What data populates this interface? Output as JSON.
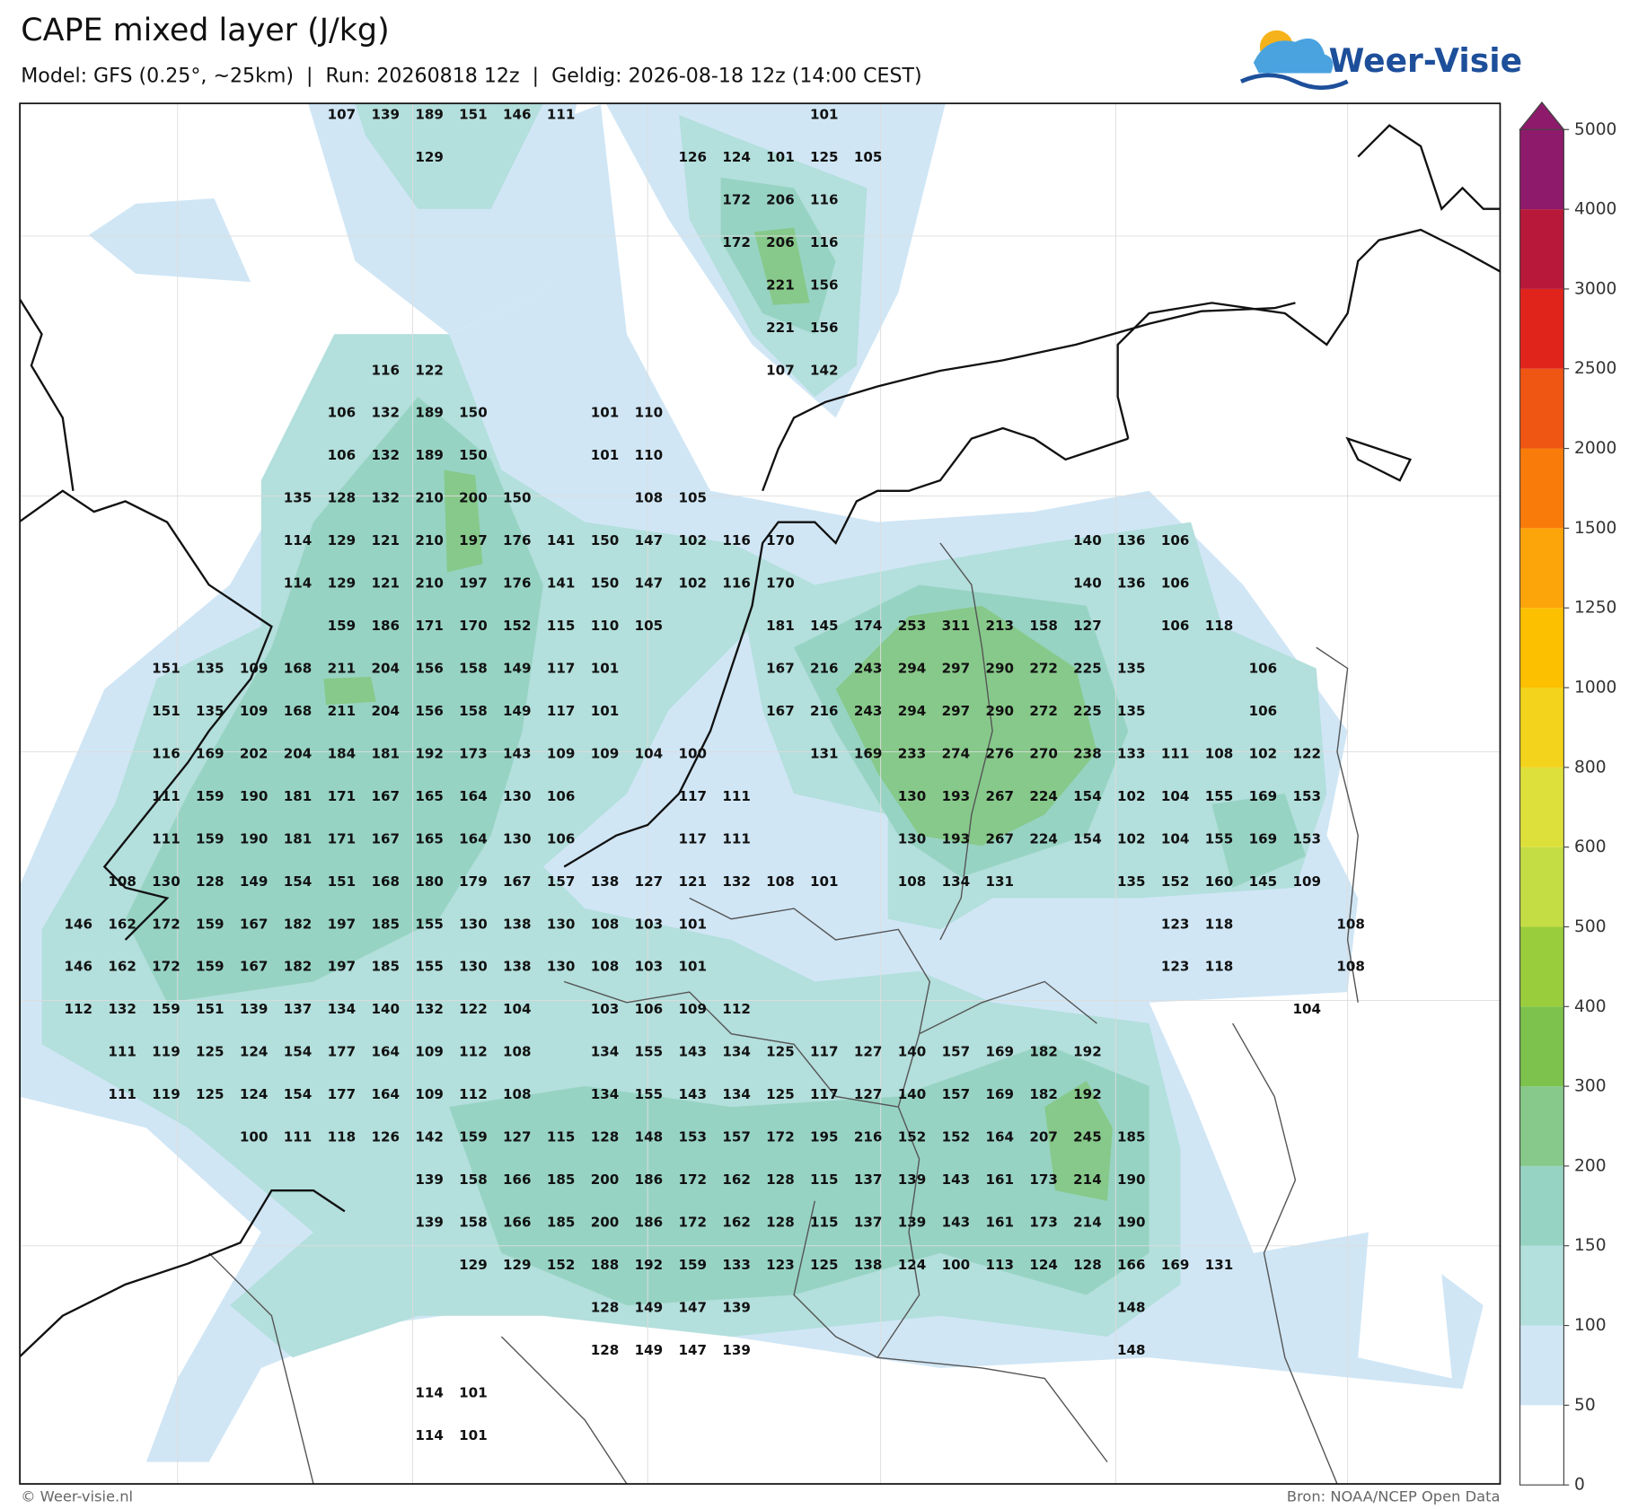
{
  "header": {
    "title": "CAPE mixed layer (J/kg)",
    "subtitle": "Model: GFS (0.25°, ~25km)  |  Run: 20260818 12z  |  Geldig: 2026-08-18 12z (14:00 CEST)",
    "logo": "Weer-Visie"
  },
  "footer": {
    "left": "© Weer-visie.nl",
    "right": "Bron: NOAA/NCEP Open Data"
  },
  "map": {
    "colorbar": {
      "levels": [
        0,
        50,
        100,
        150,
        200,
        300,
        400,
        500,
        600,
        800,
        1000,
        1250,
        1500,
        2000,
        2500,
        3000,
        4000,
        5000
      ],
      "colors": [
        "#ffffff",
        "#d0e6f5",
        "#b3dfdc",
        "#97d3c3",
        "#87c98a",
        "#7cc24c",
        "#9acd3c",
        "#c5dd45",
        "#dde03a",
        "#f3d31c",
        "#fcc000",
        "#fca50a",
        "#f97c0a",
        "#ef5513",
        "#e0241c",
        "#b8193a",
        "#8e1a6b"
      ]
    },
    "labels": [
      [
        null,
        null,
        null,
        null,
        null,
        null,
        107,
        139,
        189,
        151,
        146,
        111,
        null,
        null,
        null,
        null,
        null,
        101,
        null,
        null,
        null,
        null,
        null,
        null,
        null,
        null,
        null,
        null,
        null,
        null
      ],
      [
        null,
        null,
        null,
        null,
        null,
        null,
        null,
        null,
        129,
        null,
        null,
        null,
        null,
        null,
        126,
        124,
        101,
        125,
        105,
        null,
        null,
        null,
        null,
        null,
        null,
        null,
        null,
        null,
        null,
        null
      ],
      [
        null,
        null,
        null,
        null,
        null,
        null,
        null,
        null,
        null,
        null,
        null,
        null,
        null,
        null,
        null,
        172,
        206,
        116,
        null,
        null,
        null,
        null,
        null,
        null,
        null,
        null,
        null,
        null,
        null,
        null
      ],
      [
        null,
        null,
        null,
        null,
        null,
        null,
        null,
        null,
        null,
        null,
        null,
        null,
        null,
        null,
        null,
        172,
        206,
        116,
        null,
        null,
        null,
        null,
        null,
        null,
        null,
        null,
        null,
        null,
        null,
        null
      ],
      [
        null,
        null,
        null,
        null,
        null,
        null,
        null,
        null,
        null,
        null,
        null,
        null,
        null,
        null,
        null,
        null,
        221,
        156,
        null,
        null,
        null,
        null,
        null,
        null,
        null,
        null,
        null,
        null,
        null,
        null
      ],
      [
        null,
        null,
        null,
        null,
        null,
        null,
        null,
        null,
        null,
        null,
        null,
        null,
        null,
        null,
        null,
        null,
        221,
        156,
        null,
        null,
        null,
        null,
        null,
        null,
        null,
        null,
        null,
        null,
        null,
        null
      ],
      [
        null,
        null,
        null,
        null,
        null,
        null,
        null,
        116,
        122,
        null,
        null,
        null,
        null,
        null,
        null,
        null,
        107,
        142,
        null,
        null,
        null,
        null,
        null,
        null,
        null,
        null,
        null,
        null,
        null,
        null
      ],
      [
        null,
        null,
        null,
        null,
        null,
        null,
        106,
        132,
        189,
        150,
        null,
        null,
        101,
        110,
        null,
        null,
        null,
        null,
        null,
        null,
        null,
        null,
        null,
        null,
        null,
        null,
        null,
        null,
        null,
        null
      ],
      [
        null,
        null,
        null,
        null,
        null,
        null,
        106,
        132,
        189,
        150,
        null,
        null,
        101,
        110,
        null,
        null,
        null,
        null,
        null,
        null,
        null,
        null,
        null,
        null,
        null,
        null,
        null,
        null,
        null,
        null
      ],
      [
        null,
        null,
        null,
        null,
        null,
        135,
        128,
        132,
        210,
        200,
        150,
        null,
        null,
        108,
        105,
        null,
        null,
        null,
        null,
        null,
        null,
        null,
        null,
        null,
        null,
        null,
        null,
        null,
        null,
        null
      ],
      [
        null,
        null,
        null,
        null,
        null,
        114,
        129,
        121,
        210,
        197,
        176,
        141,
        150,
        147,
        102,
        116,
        170,
        null,
        null,
        null,
        null,
        null,
        null,
        140,
        136,
        106,
        null,
        null,
        null,
        null
      ],
      [
        null,
        null,
        null,
        null,
        null,
        114,
        129,
        121,
        210,
        197,
        176,
        141,
        150,
        147,
        102,
        116,
        170,
        null,
        null,
        null,
        null,
        null,
        null,
        140,
        136,
        106,
        null,
        null,
        null,
        null
      ],
      [
        null,
        null,
        null,
        null,
        null,
        null,
        159,
        186,
        171,
        170,
        152,
        115,
        110,
        105,
        null,
        null,
        181,
        145,
        174,
        253,
        311,
        213,
        158,
        127,
        null,
        106,
        118,
        null,
        null,
        null
      ],
      [
        null,
        null,
        151,
        135,
        109,
        168,
        211,
        204,
        156,
        158,
        149,
        117,
        101,
        null,
        null,
        null,
        167,
        216,
        243,
        294,
        297,
        290,
        272,
        225,
        135,
        null,
        null,
        106,
        null,
        null
      ],
      [
        null,
        null,
        151,
        135,
        109,
        168,
        211,
        204,
        156,
        158,
        149,
        117,
        101,
        null,
        null,
        null,
        167,
        216,
        243,
        294,
        297,
        290,
        272,
        225,
        135,
        null,
        null,
        106,
        null,
        null
      ],
      [
        null,
        null,
        116,
        169,
        202,
        204,
        184,
        181,
        192,
        173,
        143,
        109,
        109,
        104,
        100,
        null,
        null,
        131,
        169,
        233,
        274,
        276,
        270,
        238,
        133,
        111,
        108,
        102,
        122,
        null
      ],
      [
        null,
        null,
        111,
        159,
        190,
        181,
        171,
        167,
        165,
        164,
        130,
        106,
        null,
        null,
        117,
        111,
        null,
        null,
        null,
        130,
        193,
        267,
        224,
        154,
        102,
        104,
        155,
        169,
        153,
        null
      ],
      [
        null,
        null,
        111,
        159,
        190,
        181,
        171,
        167,
        165,
        164,
        130,
        106,
        null,
        null,
        117,
        111,
        null,
        null,
        null,
        130,
        193,
        267,
        224,
        154,
        102,
        104,
        155,
        169,
        153,
        null
      ],
      [
        null,
        108,
        130,
        128,
        149,
        154,
        151,
        168,
        180,
        179,
        167,
        157,
        138,
        127,
        121,
        132,
        108,
        101,
        null,
        108,
        134,
        131,
        null,
        null,
        135,
        152,
        160,
        145,
        109,
        null
      ],
      [
        146,
        162,
        172,
        159,
        167,
        182,
        197,
        185,
        155,
        130,
        138,
        130,
        108,
        103,
        101,
        null,
        null,
        null,
        null,
        null,
        null,
        null,
        null,
        null,
        null,
        123,
        118,
        null,
        null,
        108
      ],
      [
        146,
        162,
        172,
        159,
        167,
        182,
        197,
        185,
        155,
        130,
        138,
        130,
        108,
        103,
        101,
        null,
        null,
        null,
        null,
        null,
        null,
        null,
        null,
        null,
        null,
        123,
        118,
        null,
        null,
        108
      ],
      [
        112,
        132,
        159,
        151,
        139,
        137,
        134,
        140,
        132,
        122,
        104,
        null,
        103,
        106,
        109,
        112,
        null,
        null,
        null,
        null,
        null,
        null,
        null,
        null,
        null,
        null,
        null,
        null,
        104,
        null
      ],
      [
        null,
        111,
        119,
        125,
        124,
        154,
        177,
        164,
        109,
        112,
        108,
        null,
        134,
        155,
        143,
        134,
        125,
        117,
        127,
        140,
        157,
        169,
        182,
        192,
        null,
        null,
        null,
        null,
        null,
        null
      ],
      [
        null,
        111,
        119,
        125,
        124,
        154,
        177,
        164,
        109,
        112,
        108,
        null,
        134,
        155,
        143,
        134,
        125,
        117,
        127,
        140,
        157,
        169,
        182,
        192,
        null,
        null,
        null,
        null,
        null,
        null
      ],
      [
        null,
        null,
        null,
        null,
        100,
        111,
        118,
        126,
        142,
        159,
        127,
        115,
        128,
        148,
        153,
        157,
        172,
        195,
        216,
        152,
        152,
        164,
        207,
        245,
        185,
        null,
        null,
        null,
        null,
        null
      ],
      [
        null,
        null,
        null,
        null,
        null,
        null,
        null,
        null,
        139,
        158,
        166,
        185,
        200,
        186,
        172,
        162,
        128,
        115,
        137,
        139,
        143,
        161,
        173,
        214,
        190,
        null,
        null,
        null,
        null,
        null
      ],
      [
        null,
        null,
        null,
        null,
        null,
        null,
        null,
        null,
        139,
        158,
        166,
        185,
        200,
        186,
        172,
        162,
        128,
        115,
        137,
        139,
        143,
        161,
        173,
        214,
        190,
        null,
        null,
        null,
        null,
        null
      ],
      [
        null,
        null,
        null,
        null,
        null,
        null,
        null,
        null,
        null,
        129,
        129,
        152,
        188,
        192,
        159,
        133,
        123,
        125,
        138,
        124,
        100,
        113,
        124,
        128,
        166,
        169,
        131,
        null,
        null,
        null
      ],
      [
        null,
        null,
        null,
        null,
        null,
        null,
        null,
        null,
        null,
        null,
        null,
        null,
        128,
        149,
        147,
        139,
        null,
        null,
        null,
        null,
        null,
        null,
        null,
        null,
        148,
        null,
        null,
        null,
        null,
        null
      ],
      [
        null,
        null,
        null,
        null,
        null,
        null,
        null,
        null,
        null,
        null,
        null,
        null,
        128,
        149,
        147,
        139,
        null,
        null,
        null,
        null,
        null,
        null,
        null,
        null,
        148,
        null,
        null,
        null,
        null,
        null
      ],
      [
        null,
        null,
        null,
        null,
        null,
        null,
        null,
        null,
        114,
        101,
        null,
        null,
        null,
        null,
        null,
        null,
        null,
        null,
        null,
        null,
        null,
        null,
        null,
        null,
        null,
        null,
        null,
        null,
        null,
        null
      ],
      [
        null,
        null,
        null,
        null,
        null,
        null,
        null,
        null,
        114,
        101,
        null,
        null,
        null,
        null,
        null,
        null,
        null,
        null,
        null,
        null,
        null,
        null,
        null,
        null,
        null,
        null,
        null,
        null,
        null,
        null
      ]
    ]
  }
}
